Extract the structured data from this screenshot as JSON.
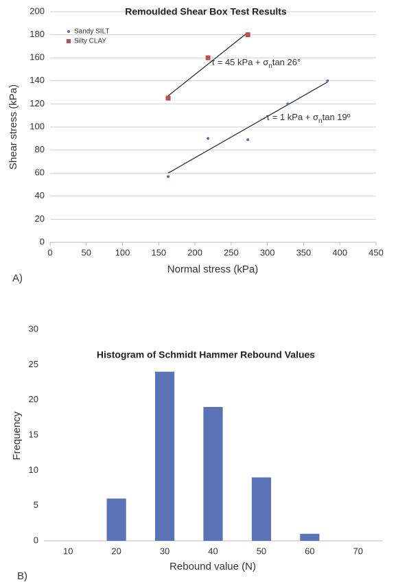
{
  "chart_data": [
    {
      "type": "scatter",
      "title": "Remoulded Shear Box Test Results",
      "panel_label": "A)",
      "x_label": "Normal stress (kPa)",
      "y_label": "Shear stress (kPa)",
      "xlim": [
        0,
        450
      ],
      "xticks": [
        0,
        50,
        100,
        150,
        200,
        250,
        300,
        350,
        400,
        450
      ],
      "ylim": [
        0,
        200
      ],
      "yticks": [
        0,
        20,
        40,
        60,
        80,
        100,
        120,
        140,
        160,
        180,
        200
      ],
      "grid": true,
      "legend": "upper left",
      "series": [
        {
          "name": "Sandy SILT",
          "color": "#4f6fb5",
          "marker": "circle",
          "x": [
            163,
            218,
            273,
            328,
            383
          ],
          "values": [
            57,
            90,
            89,
            120,
            140
          ],
          "trendline": {
            "x": [
              163,
              383
            ],
            "y": [
              60,
              139
            ]
          },
          "annotation": [
            "τ = 1 kPa + σ",
            "n",
            "tan 19º"
          ]
        },
        {
          "name": "Silty CLAY",
          "color": "#c0504d",
          "marker": "square",
          "x": [
            163,
            218,
            273
          ],
          "values": [
            125,
            160,
            180
          ],
          "trendline": {
            "x": [
              163,
              273
            ],
            "y": [
              127,
              182
            ]
          },
          "annotation": [
            "τ = 45 kPa + σ",
            "n",
            "tan 26°"
          ]
        }
      ]
    },
    {
      "type": "bar",
      "title": "Histogram of Schmidt Hammer Rebound Values",
      "panel_label": "B)",
      "x_label": "Rebound value (N)",
      "y_label": "Frequency",
      "categories": [
        "10",
        "20",
        "30",
        "40",
        "50",
        "60",
        "70"
      ],
      "values": [
        0,
        6,
        24,
        19,
        9,
        1,
        0
      ],
      "color": "#5a72b6",
      "ylim": [
        0,
        30
      ],
      "yticks": [
        0,
        5,
        10,
        15,
        20,
        25,
        30
      ],
      "grid": false
    }
  ]
}
